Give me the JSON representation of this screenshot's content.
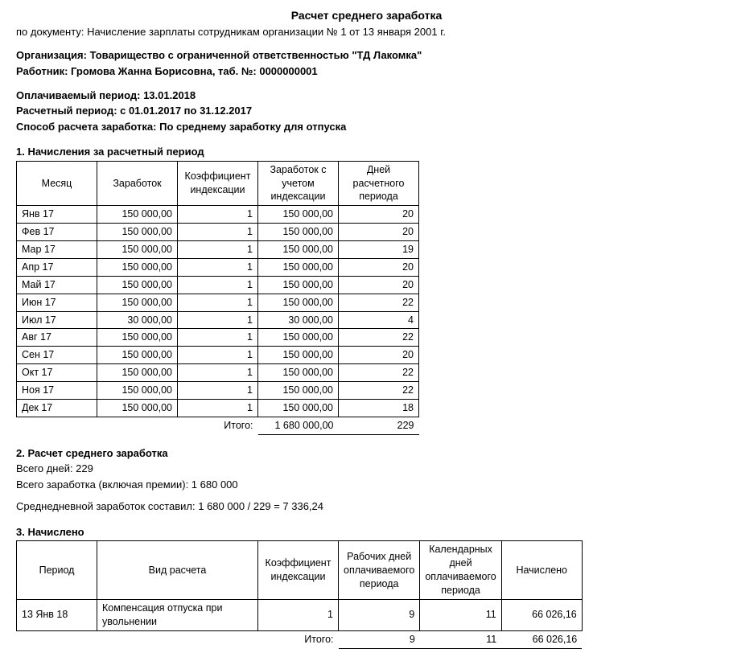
{
  "title": "Расчет среднего заработка",
  "doc_line_label": "по документу: ",
  "doc_line_value": "Начисление зарплаты сотрудникам организации № 1 от 13 января 2001 г.",
  "org_label": "Организация: ",
  "org_value": "Товарищество с ограниченной ответственностью \"ТД Лакомка\"",
  "worker_label": "Работник: ",
  "worker_value": "Громова Жанна Борисовна, таб. №: 0000000001",
  "paid_period_label": "Оплачиваемый период: ",
  "paid_period_value": "13.01.2018",
  "calc_period_label": "Расчетный период: ",
  "calc_period_value": "с 01.01.2017 по 31.12.2017",
  "method_label": "Способ расчета заработка: ",
  "method_value": "По среднему заработку для отпуска",
  "section1_heading": "1. Начисления за расчетный период",
  "table1": {
    "columns": [
      "Месяц",
      "Заработок",
      "Коэффициент индексации",
      "Заработок с учетом индексации",
      "Дней расчетного периода"
    ],
    "col_widths": [
      "100px",
      "100px",
      "100px",
      "100px",
      "100px"
    ],
    "rows": [
      [
        "Янв 17",
        "150 000,00",
        "1",
        "150 000,00",
        "20"
      ],
      [
        "Фев 17",
        "150 000,00",
        "1",
        "150 000,00",
        "20"
      ],
      [
        "Мар 17",
        "150 000,00",
        "1",
        "150 000,00",
        "19"
      ],
      [
        "Апр 17",
        "150 000,00",
        "1",
        "150 000,00",
        "20"
      ],
      [
        "Май 17",
        "150 000,00",
        "1",
        "150 000,00",
        "20"
      ],
      [
        "Июн 17",
        "150 000,00",
        "1",
        "150 000,00",
        "22"
      ],
      [
        "Июл 17",
        "30 000,00",
        "1",
        "30 000,00",
        "4"
      ],
      [
        "Авг 17",
        "150 000,00",
        "1",
        "150 000,00",
        "22"
      ],
      [
        "Сен 17",
        "150 000,00",
        "1",
        "150 000,00",
        "20"
      ],
      [
        "Окт 17",
        "150 000,00",
        "1",
        "150 000,00",
        "22"
      ],
      [
        "Ноя 17",
        "150 000,00",
        "1",
        "150 000,00",
        "22"
      ],
      [
        "Дек 17",
        "150 000,00",
        "1",
        "150 000,00",
        "18"
      ]
    ],
    "totals_label": "Итого:",
    "totals_earn": "1 680 000,00",
    "totals_days": "229"
  },
  "section2_heading": "2. Расчет среднего  заработка",
  "section2_line1": "Всего дней: 229",
  "section2_line2": "Всего заработка (включая премии): 1 680 000",
  "section2_line3": "Среднедневной заработок составил: 1 680 000 / 229 = 7 336,24",
  "section3_heading": "3. Начислено",
  "table3": {
    "columns": [
      "Период",
      "Вид расчета",
      "Коэффициент индексации",
      "Рабочих дней оплачиваемого периода",
      "Календарных дней оплачиваемого периода",
      "Начислено"
    ],
    "col_widths": [
      "100px",
      "200px",
      "100px",
      "100px",
      "100px",
      "100px"
    ],
    "rows": [
      [
        "13 Янв 18",
        "Компенсация отпуска при увольнении",
        "1",
        "9",
        "11",
        "66 026,16"
      ]
    ],
    "totals_label": "Итого:",
    "totals_work_days": "9",
    "totals_cal_days": "11",
    "totals_accrued": "66 026,16"
  }
}
